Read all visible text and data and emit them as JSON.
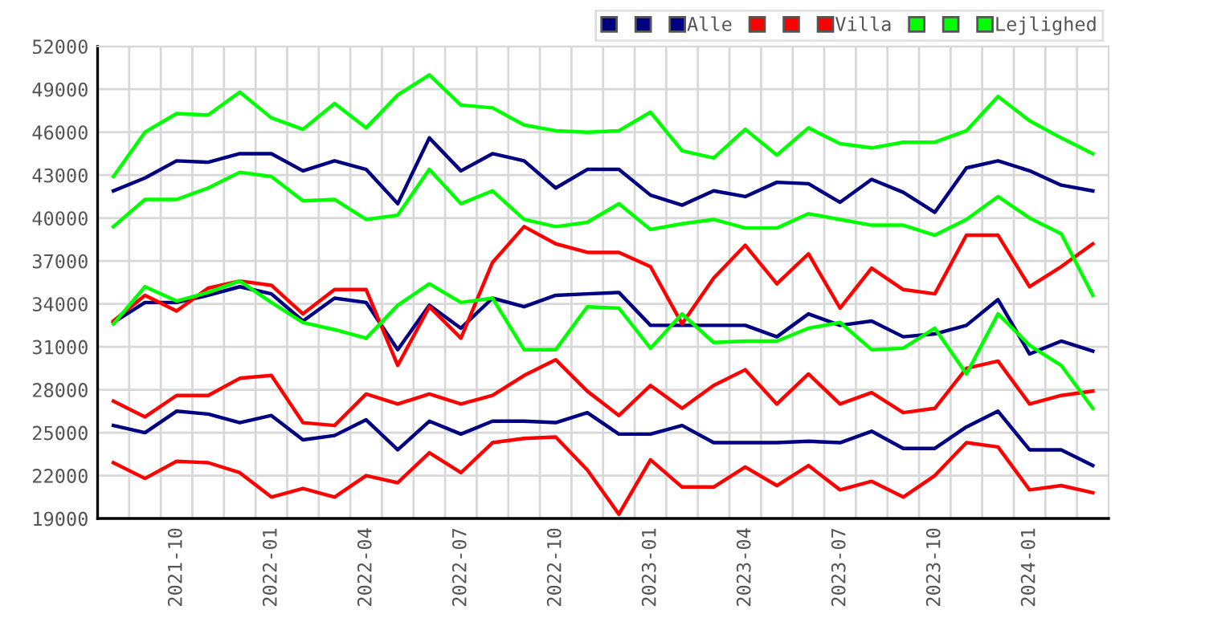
{
  "chart_data": {
    "type": "line",
    "categories": [
      null,
      null,
      "2021-10",
      null,
      null,
      "2022-01",
      null,
      null,
      "2022-04",
      null,
      null,
      "2022-07",
      null,
      null,
      "2022-10",
      null,
      null,
      "2023-01",
      null,
      null,
      "2023-04",
      null,
      null,
      "2023-07",
      null,
      null,
      "2023-10",
      null,
      null,
      "2024-01",
      null,
      null
    ],
    "series": [
      {
        "color": "#000080",
        "values": [
          25500,
          25000,
          26500,
          26300,
          25700,
          26200,
          24500,
          24800,
          25900,
          23800,
          25800,
          24900,
          25800,
          25800,
          25700,
          26400,
          24900,
          24900,
          25500,
          24300,
          24300,
          24300,
          24400,
          24300,
          25100,
          23900,
          23900,
          25400,
          26500,
          23800,
          23800,
          22700
        ]
      },
      {
        "color": "#000080",
        "values": [
          41900,
          42800,
          44000,
          43900,
          44500,
          44500,
          43300,
          44000,
          43400,
          41000,
          45600,
          43300,
          44500,
          44000,
          42100,
          43400,
          43400,
          41600,
          40900,
          41900,
          41500,
          42500,
          42400,
          41100,
          42700,
          41800,
          40400,
          43500,
          44000,
          43300,
          42300,
          41900
        ]
      },
      {
        "name": "Alle",
        "color": "#000080",
        "values": [
          32700,
          34100,
          34100,
          34600,
          35200,
          34700,
          32800,
          34400,
          34100,
          30800,
          33900,
          32300,
          34400,
          33800,
          34600,
          34700,
          34800,
          32500,
          32500,
          32500,
          32500,
          31700,
          33300,
          32500,
          32800,
          31700,
          31900,
          32500,
          34300,
          30500,
          31400,
          30700
        ]
      },
      {
        "color": "#ff0000",
        "values": [
          22900,
          21800,
          23000,
          22900,
          22200,
          20500,
          21100,
          20500,
          22000,
          21500,
          23600,
          22200,
          24300,
          24600,
          24700,
          22400,
          19300,
          23100,
          21200,
          21200,
          22600,
          21300,
          22700,
          21000,
          21600,
          20500,
          22000,
          24300,
          24000,
          21000,
          21300,
          20800
        ]
      },
      {
        "color": "#ff0000",
        "values": [
          32800,
          34600,
          33500,
          35100,
          35600,
          35300,
          33300,
          35000,
          35000,
          29700,
          33800,
          31600,
          36900,
          39400,
          38200,
          37600,
          37600,
          36600,
          32600,
          35800,
          38100,
          35400,
          37500,
          33700,
          36500,
          35000,
          34700,
          38800,
          38800,
          35200,
          36600,
          38200
        ]
      },
      {
        "name": "Villa",
        "color": "#ff0000",
        "values": [
          27200,
          26100,
          27600,
          27600,
          28800,
          29000,
          25700,
          25500,
          27700,
          27000,
          27700,
          27000,
          27600,
          29000,
          30100,
          27900,
          26200,
          28300,
          26700,
          28300,
          29400,
          27000,
          29100,
          27000,
          27800,
          26400,
          26700,
          29500,
          30000,
          27000,
          27600,
          27900
        ]
      },
      {
        "color": "#00ff00",
        "values": [
          32600,
          35200,
          34200,
          34800,
          35600,
          34100,
          32700,
          32200,
          31600,
          33900,
          35400,
          34100,
          34400,
          30800,
          30800,
          33800,
          33700,
          30900,
          33300,
          31300,
          31400,
          31400,
          32300,
          32700,
          30800,
          30900,
          32300,
          29100,
          33300,
          31100,
          29700,
          26700
        ]
      },
      {
        "color": "#00ff00",
        "values": [
          42900,
          46000,
          47300,
          47200,
          48800,
          47000,
          46200,
          48000,
          46300,
          48600,
          50000,
          47900,
          47700,
          46500,
          46100,
          46000,
          46100,
          47400,
          44700,
          44200,
          46200,
          44400,
          46300,
          45200,
          44900,
          45300,
          45300,
          46100,
          48500,
          46800,
          45600,
          44500
        ]
      },
      {
        "name": "Lejlighed",
        "color": "#00ff00",
        "values": [
          39400,
          41300,
          41300,
          42100,
          43200,
          42900,
          41200,
          41300,
          39900,
          40200,
          43400,
          41000,
          41900,
          39900,
          39400,
          39700,
          41000,
          39200,
          39600,
          39900,
          39300,
          39300,
          40300,
          39900,
          39500,
          39500,
          38800,
          39900,
          41500,
          40000,
          38900,
          34600
        ]
      }
    ],
    "ylim": [
      19000,
      52000
    ],
    "yticks": [
      19000,
      22000,
      25000,
      28000,
      31000,
      34000,
      37000,
      40000,
      43000,
      46000,
      49000,
      52000
    ],
    "grid": true,
    "legend": "top right"
  }
}
